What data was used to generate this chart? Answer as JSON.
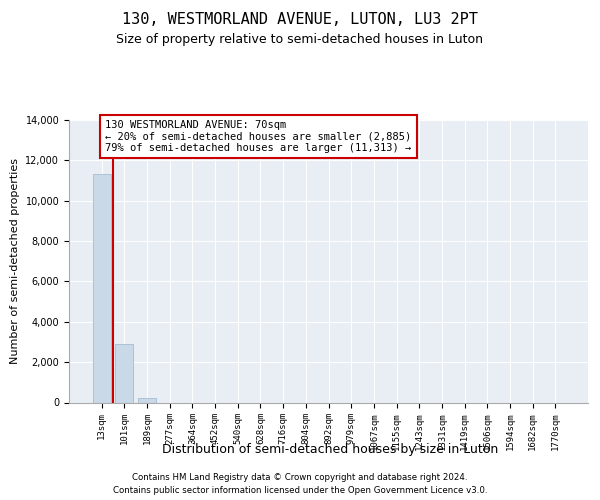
{
  "title": "130, WESTMORLAND AVENUE, LUTON, LU3 2PT",
  "subtitle": "Size of property relative to semi-detached houses in Luton",
  "xlabel": "Distribution of semi-detached houses by size in Luton",
  "ylabel": "Number of semi-detached properties",
  "categories": [
    "13sqm",
    "101sqm",
    "189sqm",
    "277sqm",
    "364sqm",
    "452sqm",
    "540sqm",
    "628sqm",
    "716sqm",
    "804sqm",
    "892sqm",
    "979sqm",
    "1067sqm",
    "1155sqm",
    "1243sqm",
    "1331sqm",
    "1419sqm",
    "1506sqm",
    "1594sqm",
    "1682sqm",
    "1770sqm"
  ],
  "values": [
    11313,
    2885,
    200,
    0,
    0,
    0,
    0,
    0,
    0,
    0,
    0,
    0,
    0,
    0,
    0,
    0,
    0,
    0,
    0,
    0,
    0
  ],
  "bar_color": "#c9d9e8",
  "bar_edge_color": "#9ab5cc",
  "red_line_x": 0.5,
  "annotation_text": "130 WESTMORLAND AVENUE: 70sqm\n← 20% of semi-detached houses are smaller (2,885)\n79% of semi-detached houses are larger (11,313) →",
  "annotation_box_color": "#ffffff",
  "annotation_box_edge_color": "#cc0000",
  "red_line_color": "#cc0000",
  "ylim": [
    0,
    14000
  ],
  "yticks": [
    0,
    2000,
    4000,
    6000,
    8000,
    10000,
    12000,
    14000
  ],
  "background_color": "#e8eef4",
  "footer_line1": "Contains HM Land Registry data © Crown copyright and database right 2024.",
  "footer_line2": "Contains public sector information licensed under the Open Government Licence v3.0.",
  "title_fontsize": 11,
  "subtitle_fontsize": 9,
  "ylabel_fontsize": 8,
  "xlabel_fontsize": 9,
  "tick_fontsize": 7,
  "xtick_fontsize": 6.5,
  "annot_fontsize": 7.5
}
